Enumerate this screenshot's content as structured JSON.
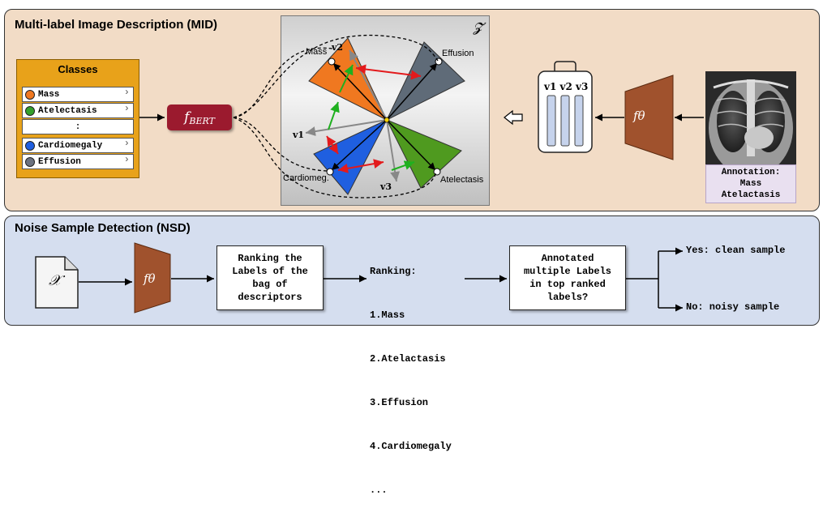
{
  "mid": {
    "title": "Multi-label Image Description (MID)",
    "classes": {
      "header": "Classes",
      "items": [
        {
          "label": "Mass",
          "color": "#f07820"
        },
        {
          "label": "Atelectasis",
          "color": "#33a02c"
        },
        {
          "label": ":",
          "color": ""
        },
        {
          "label": "Cardiomegaly",
          "color": "#1f5fe0"
        },
        {
          "label": "Effusion",
          "color": "#6b7280"
        }
      ]
    },
    "bert_label": "f_BERT",
    "space_symbol": "𝓩",
    "cone_labels": {
      "mass": "Mass",
      "effusion": "Effusion",
      "cardiomegaly": "Cardiomeg.",
      "atelectasis": "Atelectasis"
    },
    "vector_labels": {
      "v1": "v1",
      "v2": "v2",
      "v3": "v3"
    },
    "encoder_label": "fθ",
    "bag_labels": "v1 v2 v3",
    "annotation": {
      "title": "Annotation:",
      "labels": [
        "Mass",
        "Atelactasis"
      ]
    }
  },
  "nsd": {
    "title": "Noise Sample Detection (NSD)",
    "input_symbol": "𝒳",
    "encoder_label": "fθ",
    "ranking_box": "Ranking the\nLabels of the\nbag of\ndescriptors",
    "ranking": {
      "header": "Ranking:",
      "items": [
        "1.Mass",
        "2.Atelactasis",
        "3.Effusion",
        "4.Cardiomegaly",
        "..."
      ]
    },
    "question_box": "Annotated\nmultiple Labels\nin top ranked\nlabels?",
    "yes_label": "Yes: clean sample",
    "no_label": "No: noisy sample"
  },
  "colors": {
    "mid_bg": "#f2dcc6",
    "nsd_bg": "#d5deef",
    "classes_bg": "#e8a21a",
    "bert_bg": "#9b1a2e",
    "encoder": "#a0522d",
    "mass": "#f07820",
    "effusion": "#5f6b78",
    "cardiomegaly": "#1f5fe0",
    "atelectasis": "#4f9a1f"
  }
}
